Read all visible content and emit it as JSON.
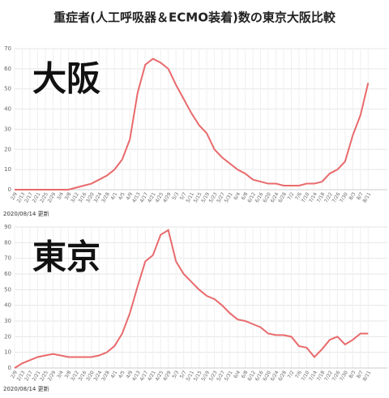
{
  "title": "重症者(人工呼吸器＆ECMO装着)数の東京大阪比較",
  "chart_data": [
    {
      "type": "line",
      "annotation": "大阪",
      "note": "2020/08/14 更新",
      "color": "#e96a6c",
      "grid": true,
      "categories": [
        "2/9",
        "2/13",
        "2/17",
        "2/21",
        "2/25",
        "2/29",
        "3/4",
        "3/8",
        "3/12",
        "3/16",
        "3/20",
        "3/24",
        "3/28",
        "4/1",
        "4/5",
        "4/9",
        "4/13",
        "4/17",
        "4/21",
        "4/25",
        "4/29",
        "5/3",
        "5/7",
        "5/11",
        "5/15",
        "5/19",
        "5/23",
        "5/27",
        "5/31",
        "6/4",
        "6/8",
        "6/12",
        "6/16",
        "6/20",
        "6/24",
        "6/28",
        "7/2",
        "7/6",
        "7/10",
        "7/14",
        "7/18",
        "7/22",
        "7/26",
        "7/30",
        "8/3",
        "8/7",
        "8/11"
      ],
      "values": [
        0,
        0,
        0,
        0,
        0,
        0,
        0,
        0,
        1,
        2,
        3,
        5,
        7,
        10,
        15,
        25,
        48,
        62,
        65,
        63,
        60,
        52,
        45,
        38,
        32,
        28,
        20,
        16,
        13,
        10,
        8,
        5,
        4,
        3,
        3,
        2,
        2,
        2,
        3,
        3,
        4,
        8,
        10,
        14,
        27,
        37,
        53
      ],
      "ylim": [
        0,
        70
      ],
      "yticks": [
        0,
        10,
        20,
        30,
        40,
        50,
        60,
        70
      ]
    },
    {
      "type": "line",
      "annotation": "東京",
      "note": "2020/08/14 更新",
      "color": "#e96a6c",
      "grid": true,
      "categories": [
        "2/9",
        "2/13",
        "2/17",
        "2/21",
        "2/25",
        "2/29",
        "3/4",
        "3/8",
        "3/12",
        "3/16",
        "3/20",
        "3/24",
        "3/28",
        "4/1",
        "4/5",
        "4/9",
        "4/13",
        "4/17",
        "4/21",
        "4/25",
        "4/29",
        "5/3",
        "5/7",
        "5/11",
        "5/15",
        "5/19",
        "5/23",
        "5/27",
        "5/31",
        "6/4",
        "6/8",
        "6/12",
        "6/16",
        "6/20",
        "6/24",
        "6/28",
        "7/2",
        "7/6",
        "7/10",
        "7/14",
        "7/18",
        "7/22",
        "7/26",
        "7/30",
        "8/3",
        "8/7",
        "8/11"
      ],
      "values": [
        0,
        3,
        5,
        7,
        8,
        9,
        8,
        7,
        7,
        7,
        7,
        8,
        10,
        14,
        22,
        35,
        52,
        68,
        72,
        85,
        88,
        68,
        60,
        55,
        50,
        46,
        44,
        40,
        35,
        31,
        30,
        28,
        26,
        22,
        21,
        21,
        20,
        14,
        13,
        7,
        12,
        18,
        20,
        15,
        18,
        22,
        22
      ],
      "ylim": [
        0,
        90
      ],
      "yticks": [
        0,
        10,
        20,
        30,
        40,
        50,
        60,
        70,
        80,
        90
      ]
    }
  ]
}
